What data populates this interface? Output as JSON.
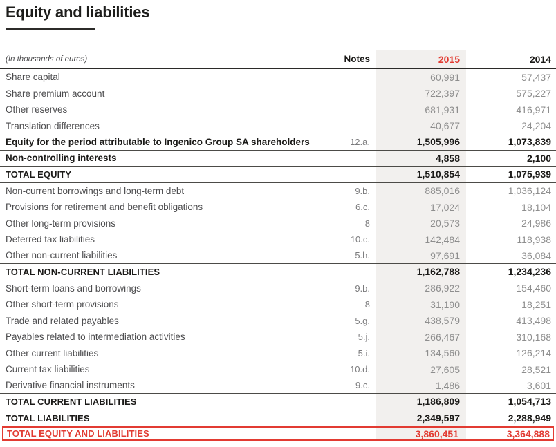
{
  "page": {
    "title": "Equity and liabilities",
    "unit_note": "(In thousands of euros)"
  },
  "colors": {
    "accent_red": "#e23b32",
    "shade": "#f2f0ee",
    "rule_dark": "#2b2a28"
  },
  "table": {
    "columns": {
      "notes": "Notes",
      "y2015": "2015",
      "y2014": "2014"
    },
    "rows": [
      {
        "label": "Share capital",
        "note": "",
        "y2015": "60,991",
        "y2014": "57,437",
        "style": "normal",
        "rule": false
      },
      {
        "label": "Share premium account",
        "note": "",
        "y2015": "722,397",
        "y2014": "575,227",
        "style": "normal",
        "rule": false
      },
      {
        "label": "Other reserves",
        "note": "",
        "y2015": "681,931",
        "y2014": "416,971",
        "style": "normal",
        "rule": false
      },
      {
        "label": "Translation differences",
        "note": "",
        "y2015": "40,677",
        "y2014": "24,204",
        "style": "normal",
        "rule": false
      },
      {
        "label": "Equity for the period attributable to Ingenico Group SA shareholders",
        "note": "12.a.",
        "y2015": "1,505,996",
        "y2014": "1,073,839",
        "style": "bold",
        "rule": true
      },
      {
        "label": "Non-controlling interests",
        "note": "",
        "y2015": "4,858",
        "y2014": "2,100",
        "style": "bold",
        "rule": true
      },
      {
        "label": "TOTAL EQUITY",
        "note": "",
        "y2015": "1,510,854",
        "y2014": "1,075,939",
        "style": "total",
        "rule": true
      },
      {
        "label": "Non-current borrowings and long-term debt",
        "note": "9.b.",
        "y2015": "885,016",
        "y2014": "1,036,124",
        "style": "normal",
        "rule": false
      },
      {
        "label": "Provisions for retirement and benefit obligations",
        "note": "6.c.",
        "y2015": "17,024",
        "y2014": "18,104",
        "style": "normal",
        "rule": false
      },
      {
        "label": "Other long-term provisions",
        "note": "8",
        "y2015": "20,573",
        "y2014": "24,986",
        "style": "normal",
        "rule": false
      },
      {
        "label": "Deferred tax liabilities",
        "note": "10.c.",
        "y2015": "142,484",
        "y2014": "118,938",
        "style": "normal",
        "rule": false
      },
      {
        "label": "Other non-current liabilities",
        "note": "5.h.",
        "y2015": "97,691",
        "y2014": "36,084",
        "style": "normal",
        "rule": true
      },
      {
        "label": "TOTAL NON-CURRENT LIABILITIES",
        "note": "",
        "y2015": "1,162,788",
        "y2014": "1,234,236",
        "style": "total",
        "rule": true
      },
      {
        "label": "Short-term loans and borrowings",
        "note": "9.b.",
        "y2015": "286,922",
        "y2014": "154,460",
        "style": "normal",
        "rule": false
      },
      {
        "label": "Other short-term provisions",
        "note": "8",
        "y2015": "31,190",
        "y2014": "18,251",
        "style": "normal",
        "rule": false
      },
      {
        "label": "Trade and related payables",
        "note": "5.g.",
        "y2015": "438,579",
        "y2014": "413,498",
        "style": "normal",
        "rule": false
      },
      {
        "label": "Payables related to intermediation activities",
        "note": "5.j.",
        "y2015": "266,467",
        "y2014": "310,168",
        "style": "normal",
        "rule": false
      },
      {
        "label": "Other current liabilities",
        "note": "5.i.",
        "y2015": "134,560",
        "y2014": "126,214",
        "style": "normal",
        "rule": false
      },
      {
        "label": "Current tax liabilities",
        "note": "10.d.",
        "y2015": "27,605",
        "y2014": "28,521",
        "style": "normal",
        "rule": false
      },
      {
        "label": "Derivative financial instruments",
        "note": "9.c.",
        "y2015": "1,486",
        "y2014": "3,601",
        "style": "normal",
        "rule": true
      },
      {
        "label": "TOTAL CURRENT LIABILITIES",
        "note": "",
        "y2015": "1,186,809",
        "y2014": "1,054,713",
        "style": "total",
        "rule": true
      },
      {
        "label": "TOTAL LIABILITIES",
        "note": "",
        "y2015": "2,349,597",
        "y2014": "2,288,949",
        "style": "total",
        "rule": false
      },
      {
        "label": "TOTAL EQUITY AND LIABILITIES",
        "note": "",
        "y2015": "3,860,451",
        "y2014": "3,364,888",
        "style": "grand",
        "rule": false
      }
    ]
  }
}
